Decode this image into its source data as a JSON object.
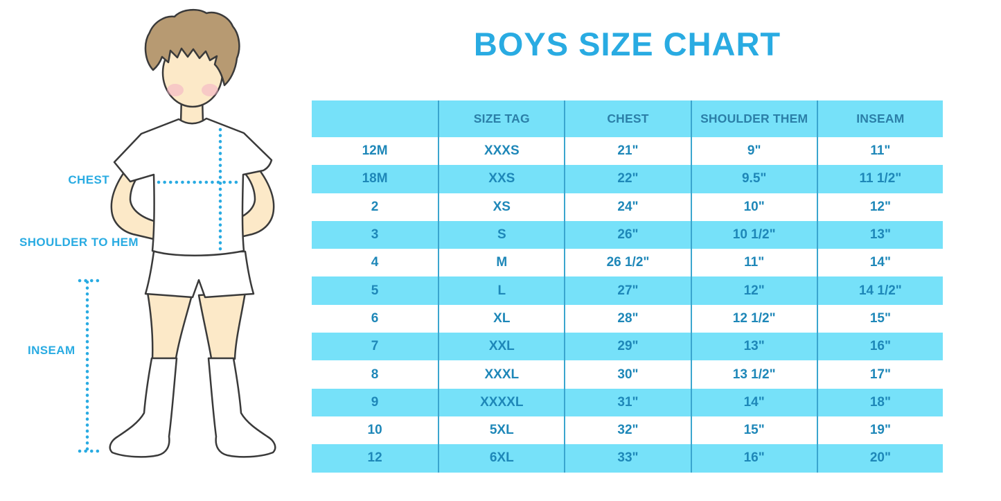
{
  "title": "BOYS SIZE CHART",
  "figure": {
    "labels": {
      "chest": "CHEST",
      "shoulder_to_hem": "SHOULDER TO HEM",
      "inseam": "INSEAM"
    }
  },
  "chart_data": {
    "type": "table",
    "title": "BOYS SIZE CHART",
    "columns": [
      "",
      "SIZE TAG",
      "CHEST",
      "SHOULDER THEM",
      "INSEAM"
    ],
    "rows": [
      [
        "12M",
        "XXXS",
        "21\"",
        "9\"",
        "11\""
      ],
      [
        "18M",
        "XXS",
        "22\"",
        "9.5\"",
        "11 1/2\""
      ],
      [
        "2",
        "XS",
        "24\"",
        "10\"",
        "12\""
      ],
      [
        "3",
        "S",
        "26\"",
        "10 1/2\"",
        "13\""
      ],
      [
        "4",
        "M",
        "26 1/2\"",
        "11\"",
        "14\""
      ],
      [
        "5",
        "L",
        "27\"",
        "12\"",
        "14 1/2\""
      ],
      [
        "6",
        "XL",
        "28\"",
        "12 1/2\"",
        "15\""
      ],
      [
        "7",
        "XXL",
        "29\"",
        "13\"",
        "16\""
      ],
      [
        "8",
        "XXXL",
        "30\"",
        "13 1/2\"",
        "17\""
      ],
      [
        "9",
        "XXXXL",
        "31\"",
        "14\"",
        "18\""
      ],
      [
        "10",
        "5XL",
        "32\"",
        "15\"",
        "19\""
      ],
      [
        "12",
        "6XL",
        "33\"",
        "16\"",
        "20\""
      ]
    ],
    "units": "inches"
  },
  "colors": {
    "accent": "#29ABE2",
    "table-fill": "#76E1F9",
    "header-text": "#2B7FA8",
    "cell-text": "#1E87B8",
    "divider": "#3AA5CE",
    "outline": "#3A3A3A",
    "skin": "#FCE9C8",
    "hair": "#B79A72",
    "cheek": "#F2AEC4"
  }
}
